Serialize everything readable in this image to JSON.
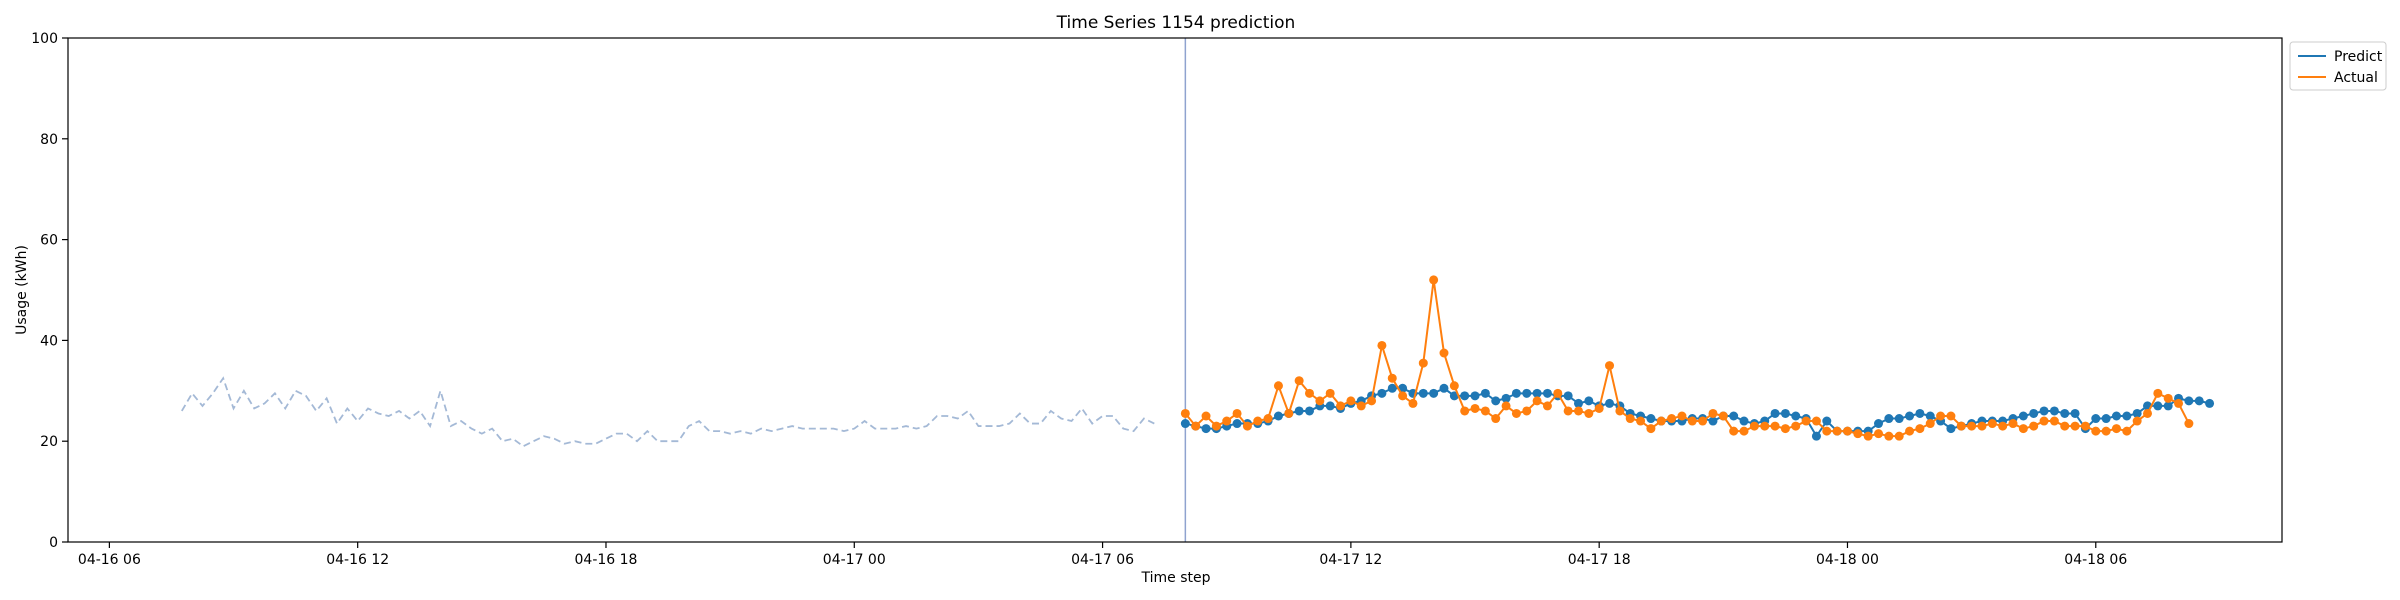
{
  "chart_data": {
    "type": "line",
    "title": "Time Series 1154 prediction",
    "xlabel": "Time step",
    "ylabel": "Usage (kWh)",
    "ylim": [
      0,
      100
    ],
    "y_ticks": [
      0,
      20,
      40,
      60,
      80,
      100
    ],
    "x_range": [
      "2016-04-16T05:00",
      "2016-04-18T10:30"
    ],
    "x_ticks": [
      {
        "t": "2016-04-16T06:00",
        "label": "04-16 06"
      },
      {
        "t": "2016-04-16T12:00",
        "label": "04-16 12"
      },
      {
        "t": "2016-04-16T18:00",
        "label": "04-16 18"
      },
      {
        "t": "2016-04-17T00:00",
        "label": "04-17 00"
      },
      {
        "t": "2016-04-17T06:00",
        "label": "04-17 06"
      },
      {
        "t": "2016-04-17T12:00",
        "label": "04-17 12"
      },
      {
        "t": "2016-04-17T18:00",
        "label": "04-17 18"
      },
      {
        "t": "2016-04-18T00:00",
        "label": "04-18 00"
      },
      {
        "t": "2016-04-18T06:00",
        "label": "04-18 06"
      }
    ],
    "forecast_start": "2016-04-17T08:00",
    "interval_minutes": 15,
    "history": {
      "start": "2016-04-16T07:45",
      "color": "#a4b9d6",
      "values": [
        26,
        29.5,
        27,
        29.5,
        32.5,
        26.5,
        30,
        26.5,
        27.5,
        29.5,
        26.5,
        30,
        29,
        26,
        28.5,
        23.5,
        26.5,
        24,
        26.5,
        25.5,
        25,
        26,
        24.5,
        26,
        23,
        30,
        23,
        24,
        22.5,
        21.5,
        22.5,
        20,
        20.5,
        19,
        20,
        21,
        20.5,
        19.5,
        20,
        19.5,
        19.5,
        20.5,
        21.5,
        21.5,
        20,
        22,
        20,
        20,
        20,
        23,
        24,
        22,
        22,
        21.5,
        22,
        21.5,
        22.5,
        22,
        22.5,
        23,
        22.5,
        22.5,
        22.5,
        22.5,
        22,
        22.5,
        24,
        22.5,
        22.5,
        22.5,
        23,
        22.5,
        23,
        25,
        25,
        24.5,
        26,
        23,
        23,
        23,
        23.5,
        25.5,
        23.5,
        23.5,
        26,
        24.5,
        24,
        26.5,
        23.5,
        25,
        25,
        22.5,
        22,
        24.5,
        23.5
      ]
    },
    "series": [
      {
        "name": "Predict",
        "color": "#1f77b4",
        "start": "2016-04-17T08:00",
        "values": [
          23.5,
          23,
          22.5,
          22.5,
          23,
          23.5,
          23.5,
          23.5,
          24,
          25,
          25.5,
          26,
          26,
          27,
          27,
          26.5,
          27.5,
          28,
          29,
          29.5,
          30.5,
          30.5,
          29.5,
          29.5,
          29.5,
          30.5,
          29,
          29,
          29,
          29.5,
          28,
          28.5,
          29.5,
          29.5,
          29.5,
          29.5,
          29,
          29,
          27.5,
          28,
          27,
          27.5,
          27,
          25.5,
          25,
          24.5,
          24,
          24,
          24,
          24.5,
          24.5,
          24,
          25,
          25,
          24,
          23.5,
          24,
          25.5,
          25.5,
          25,
          24.5,
          21,
          24,
          22,
          22,
          22,
          22,
          23.5,
          24.5,
          24.5,
          25,
          25.5,
          25,
          24,
          22.5,
          23,
          23.5,
          24,
          24,
          24,
          24.5,
          25,
          25.5,
          26,
          26,
          25.5,
          25.5,
          22.5,
          24.5,
          24.5,
          25,
          25,
          25.5,
          27,
          27,
          27,
          28.5,
          28,
          28,
          27.5
        ]
      },
      {
        "name": "Actual",
        "color": "#ff7f0e",
        "start": "2016-04-17T08:00",
        "values": [
          25.5,
          23,
          25,
          23,
          24,
          25.5,
          23,
          24,
          24.5,
          31,
          25.5,
          32,
          29.5,
          28,
          29.5,
          27,
          28,
          27,
          28,
          39,
          32.5,
          29,
          27.5,
          35.5,
          52,
          37.5,
          31,
          26,
          26.5,
          26,
          24.5,
          27,
          25.5,
          26,
          28,
          27,
          29.5,
          26,
          26,
          25.5,
          26.5,
          35,
          26,
          24.5,
          24,
          22.5,
          24,
          24.5,
          25,
          24,
          24,
          25.5,
          25,
          22,
          22,
          23,
          23,
          23,
          22.5,
          23,
          24,
          24,
          22,
          22,
          22,
          21.5,
          21,
          21.5,
          21,
          21,
          22,
          22.5,
          23.5,
          25,
          25,
          23,
          23,
          23,
          23.5,
          23,
          23.5,
          22.5,
          23,
          24,
          24,
          23,
          23,
          23,
          22,
          22,
          22.5,
          22,
          24,
          25.5,
          29.5,
          28.5,
          27.5,
          23.5
        ]
      }
    ],
    "legend": {
      "position": "top-right outside",
      "entries": [
        "Predict",
        "Actual"
      ]
    },
    "grid": false
  }
}
